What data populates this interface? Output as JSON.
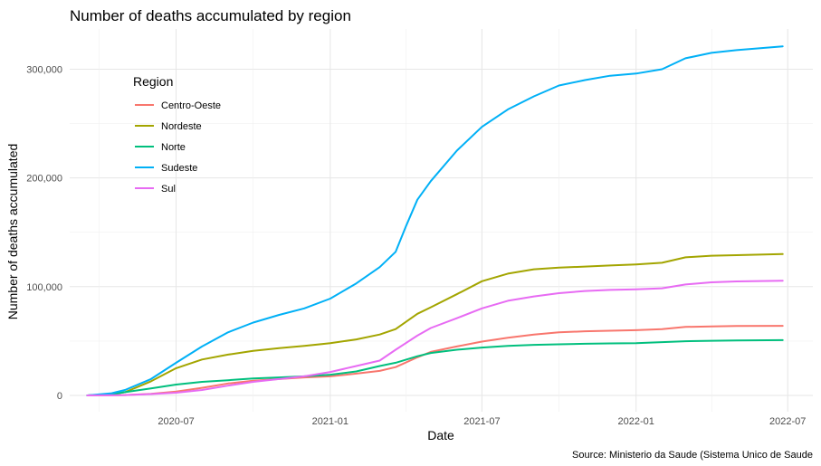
{
  "chart_data": {
    "type": "line",
    "title": "Number of deaths accumulated by region",
    "xlabel": "Date",
    "ylabel": "Number of deaths accumulated",
    "caption": "Source: Ministerio da Saude (Sistema Unico de Saude",
    "legend_title": "Region",
    "legend_position": "top-left (inside plot)",
    "grid": true,
    "x_ticks": [
      "2020-07",
      "2021-01",
      "2021-07",
      "2022-01",
      "2022-07"
    ],
    "y_ticks": [
      0,
      100000,
      200000,
      300000
    ],
    "y_tick_labels": [
      "0",
      "100,000",
      "200,000",
      "300,000"
    ],
    "xlim": [
      "2020-02-25",
      "2022-07-31"
    ],
    "ylim": [
      -15000,
      337000
    ],
    "series": [
      {
        "name": "Centro-Oeste",
        "color": "#F8766D",
        "points": [
          [
            "2020-03-17",
            0
          ],
          [
            "2020-05-01",
            300
          ],
          [
            "2020-06-01",
            1500
          ],
          [
            "2020-07-01",
            3500
          ],
          [
            "2020-08-01",
            7000
          ],
          [
            "2020-09-01",
            11000
          ],
          [
            "2020-10-01",
            13500
          ],
          [
            "2020-11-01",
            15000
          ],
          [
            "2020-12-01",
            16500
          ],
          [
            "2021-01-01",
            17500
          ],
          [
            "2021-02-01",
            20000
          ],
          [
            "2021-03-01",
            22500
          ],
          [
            "2021-03-20",
            26000
          ],
          [
            "2021-04-15",
            35000
          ],
          [
            "2021-05-01",
            40000
          ],
          [
            "2021-06-01",
            45000
          ],
          [
            "2021-07-01",
            49500
          ],
          [
            "2021-08-01",
            53000
          ],
          [
            "2021-09-01",
            56000
          ],
          [
            "2021-10-01",
            58000
          ],
          [
            "2021-11-01",
            59000
          ],
          [
            "2021-12-01",
            59500
          ],
          [
            "2022-01-01",
            60000
          ],
          [
            "2022-02-01",
            61000
          ],
          [
            "2022-03-01",
            63000
          ],
          [
            "2022-04-01",
            63500
          ],
          [
            "2022-05-01",
            63800
          ],
          [
            "2022-06-25",
            64000
          ]
        ]
      },
      {
        "name": "Nordeste",
        "color": "#A3A500",
        "points": [
          [
            "2020-03-17",
            0
          ],
          [
            "2020-04-15",
            1000
          ],
          [
            "2020-05-01",
            3000
          ],
          [
            "2020-06-01",
            13000
          ],
          [
            "2020-07-01",
            25000
          ],
          [
            "2020-08-01",
            33000
          ],
          [
            "2020-09-01",
            37500
          ],
          [
            "2020-10-01",
            41000
          ],
          [
            "2020-11-01",
            43500
          ],
          [
            "2020-12-01",
            45500
          ],
          [
            "2021-01-01",
            48000
          ],
          [
            "2021-02-01",
            51500
          ],
          [
            "2021-03-01",
            56000
          ],
          [
            "2021-03-20",
            61000
          ],
          [
            "2021-04-15",
            75000
          ],
          [
            "2021-05-01",
            81000
          ],
          [
            "2021-06-01",
            93000
          ],
          [
            "2021-07-01",
            105000
          ],
          [
            "2021-08-01",
            112000
          ],
          [
            "2021-09-01",
            116000
          ],
          [
            "2021-10-01",
            117500
          ],
          [
            "2021-11-01",
            118500
          ],
          [
            "2021-12-01",
            119500
          ],
          [
            "2022-01-01",
            120500
          ],
          [
            "2022-02-01",
            122000
          ],
          [
            "2022-03-01",
            127000
          ],
          [
            "2022-04-01",
            128500
          ],
          [
            "2022-05-01",
            129000
          ],
          [
            "2022-06-25",
            130000
          ]
        ]
      },
      {
        "name": "Norte",
        "color": "#00BF7D",
        "points": [
          [
            "2020-03-17",
            0
          ],
          [
            "2020-04-15",
            1000
          ],
          [
            "2020-05-01",
            3000
          ],
          [
            "2020-06-01",
            6500
          ],
          [
            "2020-07-01",
            10000
          ],
          [
            "2020-08-01",
            12500
          ],
          [
            "2020-09-01",
            14000
          ],
          [
            "2020-10-01",
            15500
          ],
          [
            "2020-11-01",
            16500
          ],
          [
            "2020-12-01",
            17500
          ],
          [
            "2021-01-01",
            19000
          ],
          [
            "2021-02-01",
            22000
          ],
          [
            "2021-03-01",
            27000
          ],
          [
            "2021-03-20",
            30000
          ],
          [
            "2021-04-15",
            36000
          ],
          [
            "2021-05-01",
            39000
          ],
          [
            "2021-06-01",
            42000
          ],
          [
            "2021-07-01",
            44000
          ],
          [
            "2021-08-01",
            45500
          ],
          [
            "2021-09-01",
            46500
          ],
          [
            "2021-10-01",
            47000
          ],
          [
            "2021-11-01",
            47500
          ],
          [
            "2021-12-01",
            47800
          ],
          [
            "2022-01-01",
            48000
          ],
          [
            "2022-02-01",
            49000
          ],
          [
            "2022-03-01",
            49800
          ],
          [
            "2022-04-01",
            50200
          ],
          [
            "2022-05-01",
            50500
          ],
          [
            "2022-06-25",
            50800
          ]
        ]
      },
      {
        "name": "Sudeste",
        "color": "#00B0F6",
        "points": [
          [
            "2020-03-17",
            0
          ],
          [
            "2020-04-15",
            2000
          ],
          [
            "2020-05-01",
            5000
          ],
          [
            "2020-06-01",
            15000
          ],
          [
            "2020-07-01",
            30000
          ],
          [
            "2020-08-01",
            45000
          ],
          [
            "2020-09-01",
            58000
          ],
          [
            "2020-10-01",
            67000
          ],
          [
            "2020-11-01",
            74000
          ],
          [
            "2020-12-01",
            80000
          ],
          [
            "2021-01-01",
            89000
          ],
          [
            "2021-02-01",
            103000
          ],
          [
            "2021-03-01",
            118000
          ],
          [
            "2021-03-20",
            132000
          ],
          [
            "2021-04-01",
            155000
          ],
          [
            "2021-04-15",
            180000
          ],
          [
            "2021-05-01",
            197000
          ],
          [
            "2021-06-01",
            225000
          ],
          [
            "2021-07-01",
            247000
          ],
          [
            "2021-08-01",
            263000
          ],
          [
            "2021-09-01",
            275000
          ],
          [
            "2021-10-01",
            285000
          ],
          [
            "2021-11-01",
            290000
          ],
          [
            "2021-12-01",
            294000
          ],
          [
            "2022-01-01",
            296000
          ],
          [
            "2022-02-01",
            300000
          ],
          [
            "2022-03-01",
            310000
          ],
          [
            "2022-04-01",
            315000
          ],
          [
            "2022-05-01",
            317500
          ],
          [
            "2022-06-25",
            321000
          ]
        ]
      },
      {
        "name": "Sul",
        "color": "#E76BF3",
        "points": [
          [
            "2020-03-17",
            0
          ],
          [
            "2020-05-01",
            300
          ],
          [
            "2020-06-01",
            1200
          ],
          [
            "2020-07-01",
            2500
          ],
          [
            "2020-08-01",
            5000
          ],
          [
            "2020-09-01",
            9000
          ],
          [
            "2020-10-01",
            12500
          ],
          [
            "2020-11-01",
            15000
          ],
          [
            "2020-12-01",
            17500
          ],
          [
            "2021-01-01",
            21500
          ],
          [
            "2021-02-01",
            27000
          ],
          [
            "2021-03-01",
            32000
          ],
          [
            "2021-03-20",
            42000
          ],
          [
            "2021-04-15",
            55000
          ],
          [
            "2021-05-01",
            62000
          ],
          [
            "2021-06-01",
            71000
          ],
          [
            "2021-07-01",
            80000
          ],
          [
            "2021-08-01",
            87000
          ],
          [
            "2021-09-01",
            91000
          ],
          [
            "2021-10-01",
            94000
          ],
          [
            "2021-11-01",
            96000
          ],
          [
            "2021-12-01",
            97000
          ],
          [
            "2022-01-01",
            97500
          ],
          [
            "2022-02-01",
            98500
          ],
          [
            "2022-03-01",
            102000
          ],
          [
            "2022-04-01",
            104000
          ],
          [
            "2022-05-01",
            104800
          ],
          [
            "2022-06-25",
            105500
          ]
        ]
      }
    ]
  }
}
